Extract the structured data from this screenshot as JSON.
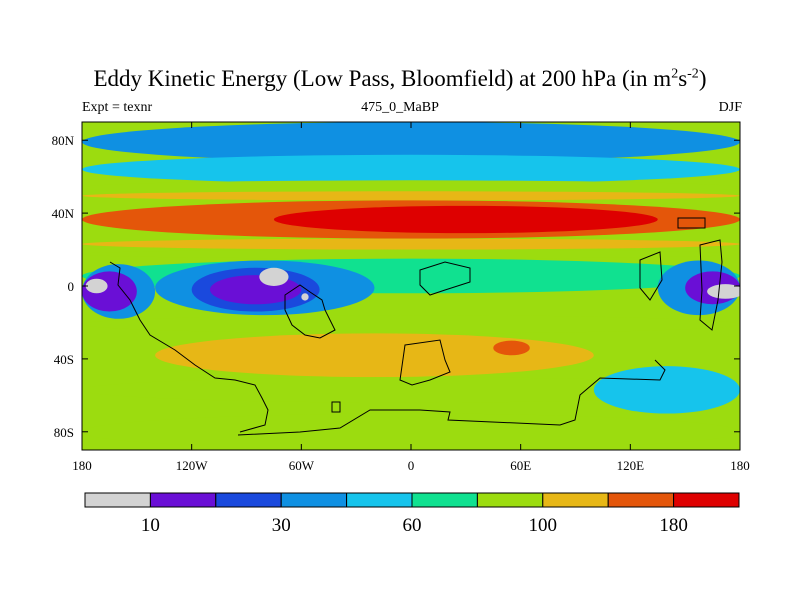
{
  "chart_data": {
    "type": "heatmap",
    "title_main": "Eddy Kinetic Energy (Low Pass, Bloomfield) at 200 hPa (in m",
    "title_sup1": "2",
    "title_mid": "s",
    "title_sup2": "-2",
    "title_end": ")",
    "left_label": "Expt = texnr",
    "center_label": "475_0_MaBP",
    "right_label": "DJF",
    "x_range": [
      -180,
      180
    ],
    "y_range": [
      -90,
      90
    ],
    "x_ticks": [
      {
        "value": -180,
        "label": "180"
      },
      {
        "value": -120,
        "label": "120W"
      },
      {
        "value": -60,
        "label": "60W"
      },
      {
        "value": 0,
        "label": "0"
      },
      {
        "value": 60,
        "label": "60E"
      },
      {
        "value": 120,
        "label": "120E"
      },
      {
        "value": 180,
        "label": "180"
      }
    ],
    "y_ticks": [
      {
        "value": 80,
        "label": "80N"
      },
      {
        "value": 40,
        "label": "40N"
      },
      {
        "value": 0,
        "label": "0"
      },
      {
        "value": -40,
        "label": "40S"
      },
      {
        "value": -80,
        "label": "80S"
      }
    ],
    "levels": [
      {
        "color": "#d3d3d3",
        "label": ""
      },
      {
        "color": "#6a0fd6",
        "label": "10"
      },
      {
        "color": "#1a49dd",
        "label": ""
      },
      {
        "color": "#0f90e2",
        "label": "30"
      },
      {
        "color": "#16c4ec",
        "label": ""
      },
      {
        "color": "#10e190",
        "label": "60"
      },
      {
        "color": "#9cdc0f",
        "label": ""
      },
      {
        "color": "#e7b716",
        "label": "100"
      },
      {
        "color": "#e4560a",
        "label": ""
      },
      {
        "color": "#de0000",
        "label": "180"
      }
    ],
    "regions": [
      {
        "level": 3,
        "lon": [
          -180,
          180
        ],
        "lat": [
          68,
          90
        ]
      },
      {
        "level": 4,
        "lon": [
          -180,
          180
        ],
        "lat": [
          56,
          72
        ]
      },
      {
        "level": 6,
        "lon": [
          -180,
          180
        ],
        "lat": [
          50,
          58
        ]
      },
      {
        "level": 7,
        "lon": [
          -180,
          180
        ],
        "lat": [
          47,
          52
        ]
      },
      {
        "level": 8,
        "lon": [
          -180,
          180
        ],
        "lat": [
          26,
          47
        ]
      },
      {
        "level": 9,
        "lon": [
          -75,
          135
        ],
        "lat": [
          29,
          44
        ]
      },
      {
        "level": 7,
        "lon": [
          -180,
          180
        ],
        "lat": [
          20,
          26
        ]
      },
      {
        "level": 6,
        "lon": [
          -180,
          180
        ],
        "lat": [
          15,
          20
        ]
      },
      {
        "level": 5,
        "lon": [
          -180,
          180
        ],
        "lat": [
          -4,
          15
        ]
      },
      {
        "level": 3,
        "lon": [
          -180,
          -140
        ],
        "lat": [
          -18,
          12
        ]
      },
      {
        "level": 1,
        "lon": [
          -180,
          -150
        ],
        "lat": [
          -14,
          8
        ]
      },
      {
        "level": 3,
        "lon": [
          -140,
          -20
        ],
        "lat": [
          -16,
          14
        ]
      },
      {
        "level": 2,
        "lon": [
          -120,
          -50
        ],
        "lat": [
          -14,
          10
        ]
      },
      {
        "level": 1,
        "lon": [
          -110,
          -60
        ],
        "lat": [
          -10,
          6
        ]
      },
      {
        "level": 3,
        "lon": [
          135,
          180
        ],
        "lat": [
          -16,
          14
        ]
      },
      {
        "level": 1,
        "lon": [
          150,
          180
        ],
        "lat": [
          -10,
          8
        ]
      },
      {
        "level": 6,
        "lon": [
          -180,
          180
        ],
        "lat": [
          -26,
          -16
        ]
      },
      {
        "level": 7,
        "lon": [
          -140,
          100
        ],
        "lat": [
          -50,
          -26
        ]
      },
      {
        "level": 8,
        "lon": [
          45,
          65
        ],
        "lat": [
          -38,
          -30
        ]
      },
      {
        "level": 6,
        "lon": [
          -180,
          180
        ],
        "lat": [
          -64,
          -50
        ]
      },
      {
        "level": 4,
        "lon": [
          100,
          180
        ],
        "lat": [
          -70,
          -44
        ]
      },
      {
        "level": 6,
        "lon": [
          -180,
          180
        ],
        "lat": [
          -90,
          -70
        ]
      }
    ],
    "spots": [
      {
        "level": 0,
        "lon": -172,
        "lat": 0,
        "rlon": 6,
        "rlat": 4
      },
      {
        "level": 0,
        "lon": -75,
        "lat": 5,
        "rlon": 8,
        "rlat": 5
      },
      {
        "level": 0,
        "lon": -58,
        "lat": -6,
        "rlon": 2,
        "rlat": 2
      },
      {
        "level": 0,
        "lon": 172,
        "lat": -3,
        "rlon": 10,
        "rlat": 4
      }
    ]
  }
}
